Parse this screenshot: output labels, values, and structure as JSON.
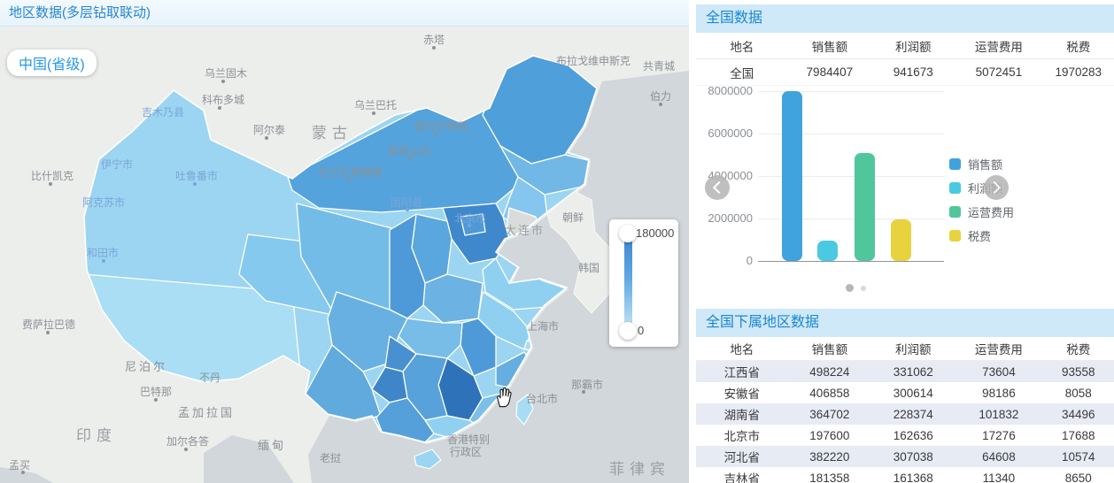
{
  "map_panel": {
    "title": "地区数据(多层钻取联动)",
    "drill_button_label": "中国(省级)",
    "legend_max": "180000",
    "legend_min": "0",
    "labels": [
      "赤塔",
      "乌兰巴托",
      "科布多城",
      "阿尔泰",
      "乌兰固木",
      "吉木乃县",
      "蒙古",
      "达兰扎德嘎德",
      "赛音山达",
      "西乌尔特县",
      "共青城",
      "伯力",
      "比什凯克",
      "吐鲁番市",
      "伊宁市",
      "阿克苏市",
      "和田市",
      "费萨拉巴德",
      "尼泊尔",
      "巴特那",
      "不丹",
      "孟加拉国",
      "加尔各答",
      "印度",
      "孟买",
      "缅甸",
      "老挝",
      "菲律宾",
      "香港特别",
      "行政区",
      "台北市",
      "那霸市",
      "上海市",
      "大连市",
      "朝鲜",
      "韩国",
      "固阳县",
      "北京市",
      "布拉戈维申斯克"
    ]
  },
  "national_panel": {
    "title": "全国数据",
    "table": {
      "headers": [
        "地名",
        "销售额",
        "利润额",
        "运营费用",
        "税费"
      ],
      "row": [
        "全国",
        "7984407",
        "941673",
        "5072451",
        "1970283"
      ]
    }
  },
  "regions_panel": {
    "title": "全国下属地区数据",
    "table": {
      "headers": [
        "地名",
        "销售额",
        "利润额",
        "运营费用",
        "税费"
      ],
      "rows": [
        [
          "江西省",
          "498224",
          "331062",
          "73604",
          "93558"
        ],
        [
          "安徽省",
          "406858",
          "300614",
          "98186",
          "8058"
        ],
        [
          "湖南省",
          "364702",
          "228374",
          "101832",
          "34496"
        ],
        [
          "北京市",
          "197600",
          "162636",
          "17276",
          "17688"
        ],
        [
          "河北省",
          "382220",
          "307038",
          "64608",
          "10574"
        ],
        [
          "吉林省",
          "181358",
          "161368",
          "11340",
          "8650"
        ]
      ]
    }
  },
  "chart_data": {
    "type": "bar",
    "categories": [
      "销售额",
      "利润额",
      "运营费用",
      "税费"
    ],
    "values": [
      7984407,
      941673,
      5072451,
      1970283
    ],
    "colors": [
      "#41a3dd",
      "#4ac9e3",
      "#50c79b",
      "#e8d33f"
    ],
    "legend": [
      "销售额",
      "利润额",
      "运营费用",
      "税费"
    ],
    "legend_position": "right",
    "yticks": [
      "8000000",
      "6000000",
      "4000000",
      "2000000",
      "0"
    ],
    "ylim": [
      0,
      8000000
    ],
    "grid": true,
    "title": "全国数据"
  },
  "colors": {
    "accent_blue": "#1b87d3",
    "panel_header_bg": "#cfe9f8",
    "choropleth_high": "#2e72ba",
    "choropleth_low": "#a8dcf4",
    "sea": "#d1d7da",
    "basemap_land": "#eceeec"
  },
  "icons": {
    "prev": "chevron-left",
    "next": "chevron-right",
    "cursor": "hand-cursor",
    "legend_handles": "slider-handle"
  }
}
